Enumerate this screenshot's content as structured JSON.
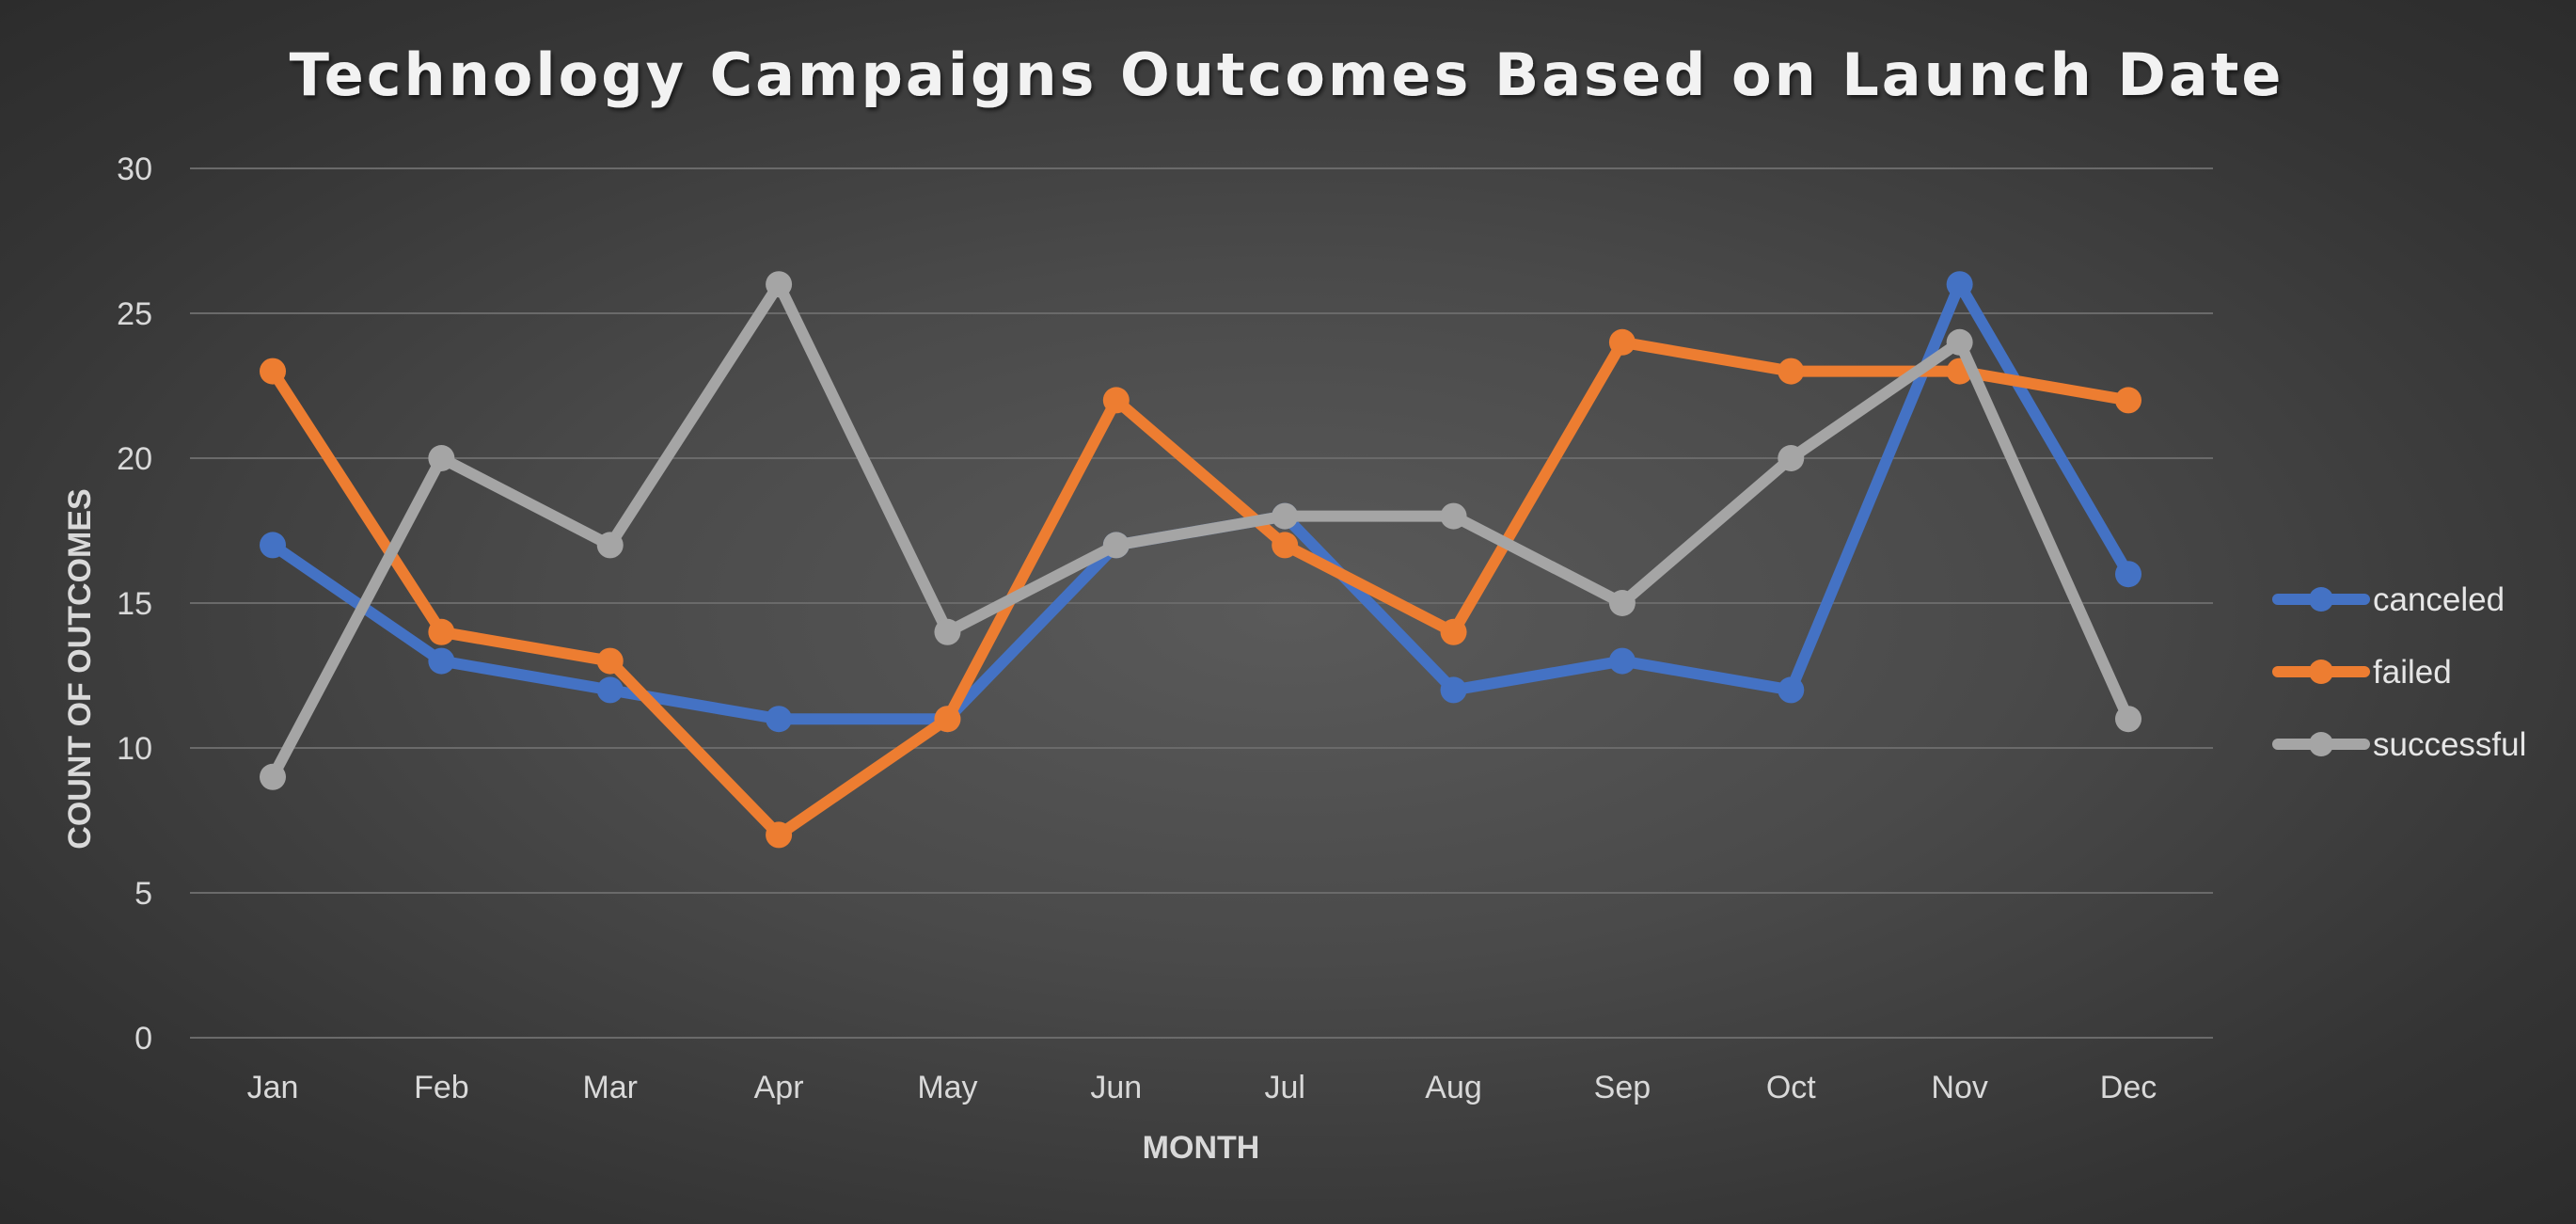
{
  "chart_data": {
    "type": "line",
    "title": "Technology Campaigns Outcomes Based on Launch Date",
    "xlabel": "MONTH",
    "ylabel": "COUNT OF OUTCOMES",
    "ylim": [
      0,
      30
    ],
    "yticks": [
      0,
      5,
      10,
      15,
      20,
      25,
      30
    ],
    "categories": [
      "Jan",
      "Feb",
      "Mar",
      "Apr",
      "May",
      "Jun",
      "Jul",
      "Aug",
      "Sep",
      "Oct",
      "Nov",
      "Dec"
    ],
    "grid": true,
    "legend_position": "right",
    "series": [
      {
        "name": "canceled",
        "color": "#4472c4",
        "values": [
          17,
          13,
          12,
          11,
          11,
          17,
          18,
          12,
          13,
          12,
          26,
          16
        ]
      },
      {
        "name": "failed",
        "color": "#ed7d31",
        "values": [
          23,
          14,
          13,
          7,
          11,
          22,
          17,
          14,
          24,
          23,
          23,
          22
        ]
      },
      {
        "name": "successful",
        "color": "#a5a5a5",
        "values": [
          9,
          20,
          17,
          26,
          14,
          17,
          18,
          18,
          15,
          20,
          24,
          11
        ]
      }
    ]
  }
}
